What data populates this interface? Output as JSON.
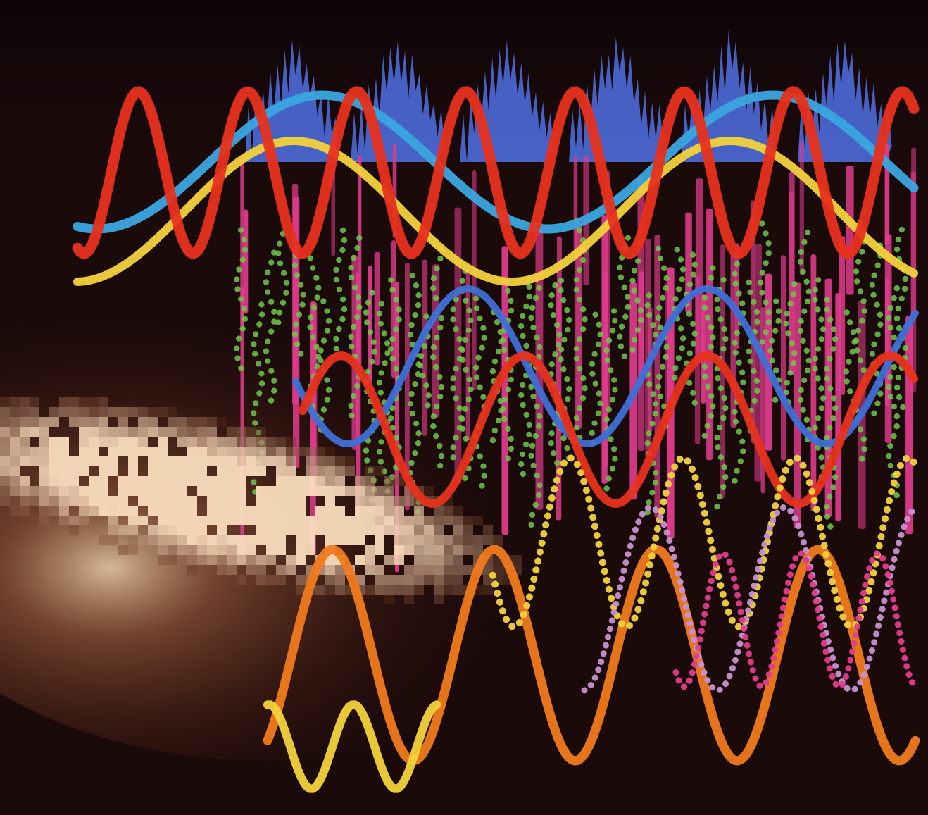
{
  "image": {
    "subject": "",
    "palette": {
      "background": "#140708",
      "brown_glow": "#5a2a1a",
      "pixel_highlight": "#f2dcc0",
      "red": "#e8321c",
      "sky_blue": "#3aa6e0",
      "yellow": "#f3d23c",
      "pink": "#e23c8e",
      "green": "#6fc64a",
      "cobalt": "#3f6fd8",
      "violet_blue": "#4d6ad8",
      "orange": "#f07a1c",
      "lilac": "#c890d0"
    }
  }
}
